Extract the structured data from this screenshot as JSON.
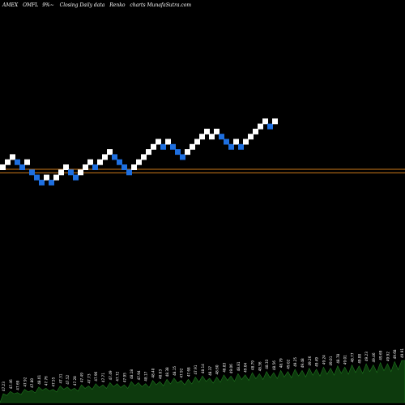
{
  "caption": {
    "exchange": "AMEX",
    "symbol": "OMFL",
    "suffix": "9%~",
    "text": "Closing Daily data",
    "chart_word": "Renko",
    "source": "charts MunafaSutra.com"
  },
  "colors": {
    "background": "#000000",
    "up_brick": "#ffffff",
    "down_brick": "#1e6fe0",
    "price_line": "#cc7a1a",
    "volume_fill": "#0d3a0d",
    "volume_line": "#1f7a1f",
    "text": "#ffffff"
  },
  "chart_data": {
    "type": "renko",
    "title": "AMEX OMFL 9%~ Closing Daily data Renko charts MunafaSutra.com",
    "bricks": [
      {
        "level": 0,
        "dir": "up"
      },
      {
        "level": 1,
        "dir": "up"
      },
      {
        "level": 2,
        "dir": "up"
      },
      {
        "level": 1,
        "dir": "down"
      },
      {
        "level": 0,
        "dir": "down"
      },
      {
        "level": 1,
        "dir": "up"
      },
      {
        "level": -1,
        "dir": "down"
      },
      {
        "level": -2,
        "dir": "down"
      },
      {
        "level": -3,
        "dir": "down"
      },
      {
        "level": -2,
        "dir": "up"
      },
      {
        "level": -3,
        "dir": "down"
      },
      {
        "level": -2,
        "dir": "up"
      },
      {
        "level": -1,
        "dir": "up"
      },
      {
        "level": 0,
        "dir": "up"
      },
      {
        "level": -1,
        "dir": "down"
      },
      {
        "level": -2,
        "dir": "down"
      },
      {
        "level": -1,
        "dir": "up"
      },
      {
        "level": 0,
        "dir": "up"
      },
      {
        "level": 1,
        "dir": "up"
      },
      {
        "level": 0,
        "dir": "down"
      },
      {
        "level": 1,
        "dir": "up"
      },
      {
        "level": 2,
        "dir": "up"
      },
      {
        "level": 3,
        "dir": "up"
      },
      {
        "level": 2,
        "dir": "down"
      },
      {
        "level": 1,
        "dir": "down"
      },
      {
        "level": 0,
        "dir": "down"
      },
      {
        "level": -1,
        "dir": "down"
      },
      {
        "level": 0,
        "dir": "up"
      },
      {
        "level": 1,
        "dir": "up"
      },
      {
        "level": 2,
        "dir": "up"
      },
      {
        "level": 3,
        "dir": "up"
      },
      {
        "level": 4,
        "dir": "up"
      },
      {
        "level": 5,
        "dir": "up"
      },
      {
        "level": 4,
        "dir": "down"
      },
      {
        "level": 5,
        "dir": "up"
      },
      {
        "level": 4,
        "dir": "down"
      },
      {
        "level": 3,
        "dir": "down"
      },
      {
        "level": 2,
        "dir": "down"
      },
      {
        "level": 3,
        "dir": "up"
      },
      {
        "level": 4,
        "dir": "up"
      },
      {
        "level": 5,
        "dir": "up"
      },
      {
        "level": 6,
        "dir": "up"
      },
      {
        "level": 7,
        "dir": "up"
      },
      {
        "level": 6,
        "dir": "up"
      },
      {
        "level": 7,
        "dir": "up"
      },
      {
        "level": 6,
        "dir": "down"
      },
      {
        "level": 5,
        "dir": "down"
      },
      {
        "level": 4,
        "dir": "down"
      },
      {
        "level": 5,
        "dir": "up"
      },
      {
        "level": 4,
        "dir": "down"
      },
      {
        "level": 5,
        "dir": "up"
      },
      {
        "level": 6,
        "dir": "up"
      },
      {
        "level": 7,
        "dir": "up"
      },
      {
        "level": 8,
        "dir": "up"
      },
      {
        "level": 9,
        "dir": "up"
      },
      {
        "level": 8,
        "dir": "down"
      },
      {
        "level": 9,
        "dir": "up"
      }
    ],
    "reference_levels": [
      -0.4,
      -1.1
    ],
    "volume": {
      "values": [
        8,
        10,
        9,
        12,
        11,
        14,
        13,
        12,
        15,
        14,
        13,
        16,
        15,
        17,
        16,
        18,
        17,
        16,
        19,
        18,
        17,
        20,
        19,
        21,
        22,
        20,
        21,
        23,
        24,
        22,
        23,
        25,
        24,
        26,
        25,
        27,
        26,
        28,
        27,
        29,
        28,
        30,
        29,
        31,
        30,
        32,
        31,
        33,
        32,
        34,
        33,
        35,
        34,
        36,
        35,
        37,
        38
      ],
      "labels": [
        "47.23",
        "47.46",
        "47.69",
        "47.92",
        "47.80",
        "48.01",
        "47.76",
        "47.55",
        "47.31",
        "47.52",
        "47.28",
        "47.49",
        "47.73",
        "47.96",
        "47.71",
        "47.49",
        "47.72",
        "47.95",
        "48.18",
        "47.94",
        "48.17",
        "48.40",
        "48.63",
        "48.38",
        "48.15",
        "47.92",
        "47.68",
        "47.91",
        "48.14",
        "48.37",
        "48.60",
        "48.83",
        "49.06",
        "48.81",
        "49.04",
        "48.79",
        "48.56",
        "48.33",
        "48.56",
        "48.79",
        "49.02",
        "49.25",
        "49.48",
        "49.26",
        "49.49",
        "49.24",
        "49.01",
        "48.78",
        "49.01",
        "48.77",
        "49.00",
        "49.23",
        "49.46",
        "49.69",
        "49.92",
        "49.68",
        "49.91"
      ]
    }
  }
}
